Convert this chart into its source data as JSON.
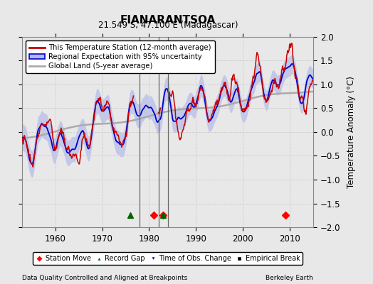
{
  "title": "FIANARANTSOA",
  "subtitle": "21.549 S, 47.100 E (Madagascar)",
  "ylabel": "Temperature Anomaly (°C)",
  "xlabel_left": "Data Quality Controlled and Aligned at Breakpoints",
  "xlabel_right": "Berkeley Earth",
  "ylim": [
    -2,
    2
  ],
  "xlim": [
    1953,
    2015
  ],
  "yticks": [
    -2,
    -1.5,
    -1,
    -0.5,
    0,
    0.5,
    1,
    1.5,
    2
  ],
  "xticks": [
    1960,
    1970,
    1980,
    1990,
    2000,
    2010
  ],
  "background_color": "#e8e8e8",
  "plot_bg_color": "#e8e8e8",
  "vertical_lines": [
    1978,
    1982,
    1984
  ],
  "station_moves": [
    1981,
    1983,
    2009
  ],
  "record_gaps": [
    1976,
    1983
  ],
  "obs_changes": [],
  "empirical_breaks": [],
  "red_line_color": "#cc0000",
  "blue_line_color": "#0000cc",
  "blue_fill_color": "#b0b8e8",
  "gray_line_color": "#aaaaaa",
  "grid_color": "#cccccc",
  "vline_color": "#666666"
}
